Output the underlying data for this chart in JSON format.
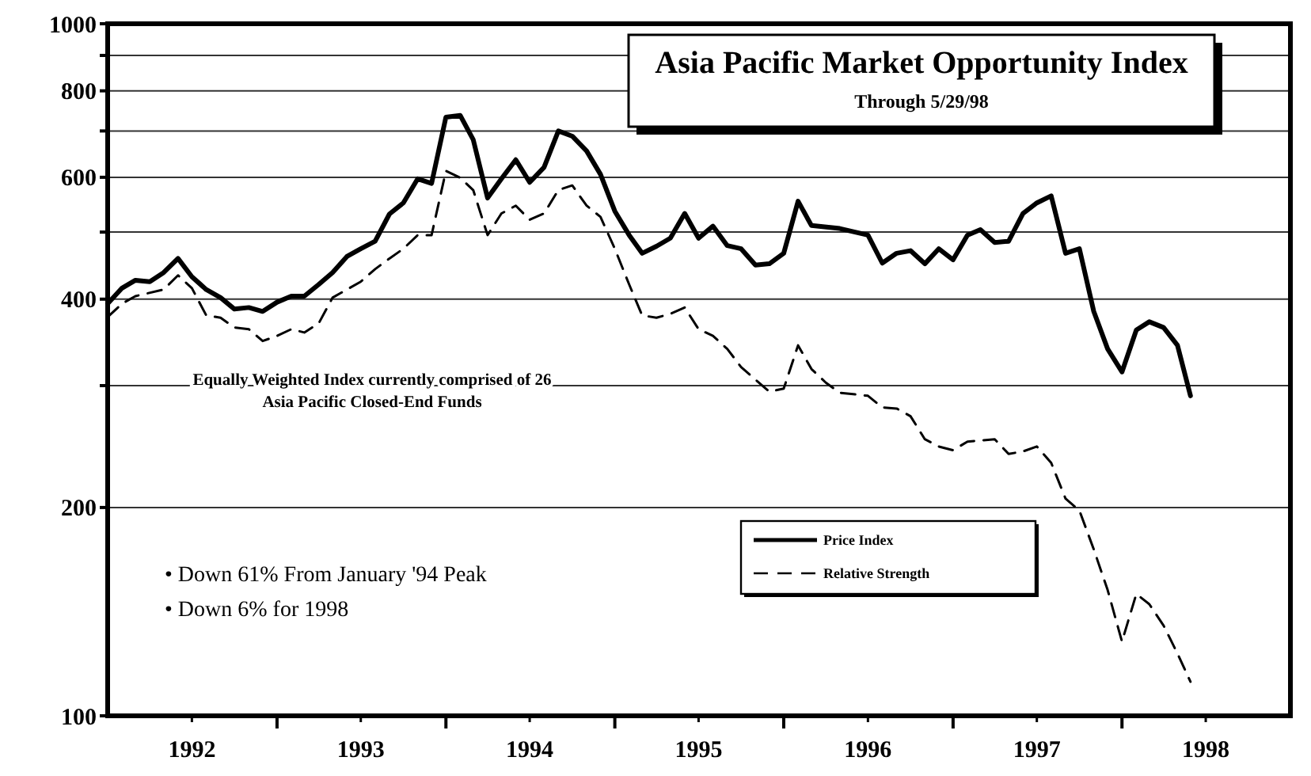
{
  "chart_data": {
    "type": "line",
    "title": "Asia Pacific Market Opportunity Index",
    "subtitle": "Through  5/29/98",
    "log": "y",
    "grid": "y",
    "legend": "bottom",
    "marker": "none",
    "xlim": [
      "1992-01-01",
      "1998-12-31"
    ],
    "xticks": [
      {
        "value": "1992-07-01",
        "label": "1992"
      },
      {
        "value": "1993-01-01",
        "label": null
      },
      {
        "value": "1993-07-01",
        "label": "1993"
      },
      {
        "value": "1994-01-01",
        "label": null
      },
      {
        "value": "1994-07-01",
        "label": "1994"
      },
      {
        "value": "1995-01-01",
        "label": null
      },
      {
        "value": "1995-07-01",
        "label": "1995"
      },
      {
        "value": "1996-01-01",
        "label": null
      },
      {
        "value": "1996-07-01",
        "label": "1996"
      },
      {
        "value": "1997-01-01",
        "label": null
      },
      {
        "value": "1997-07-01",
        "label": "1997"
      },
      {
        "value": "1998-01-01",
        "label": null
      },
      {
        "value": "1998-07-01",
        "label": "1998"
      }
    ],
    "ylim": [
      100,
      1000
    ],
    "yticks": [
      100,
      200,
      {
        "value": 300,
        "label": null
      },
      400,
      {
        "value": 500,
        "label": null
      },
      600,
      {
        "value": 700,
        "label": null
      },
      800,
      {
        "value": 900,
        "label": null
      },
      1000
    ],
    "annotations": [
      "Equally Weighted Index currently comprised of 26",
      "Asia Pacific Closed-End Funds",
      "• Down 61% From January '94 Peak",
      "• Down 6% for 1998"
    ],
    "series": [
      {
        "name": "Price Index",
        "color": "#000000",
        "line_style": "solid",
        "x": [
          "1992-01",
          "1992-02",
          "1992-03",
          "1992-04",
          "1992-05",
          "1992-06",
          "1992-07",
          "1992-08",
          "1992-09",
          "1992-10",
          "1992-11",
          "1992-12",
          "1993-01",
          "1993-02",
          "1993-03",
          "1993-04",
          "1993-05",
          "1993-06",
          "1993-07",
          "1993-08",
          "1993-09",
          "1993-10",
          "1993-11",
          "1993-12",
          "1994-01",
          "1994-02",
          "1994-03",
          "1994-04",
          "1994-05",
          "1994-06",
          "1994-07",
          "1994-08",
          "1994-09",
          "1994-10",
          "1994-11",
          "1994-12",
          "1995-01",
          "1995-02",
          "1995-03",
          "1995-04",
          "1995-05",
          "1995-06",
          "1995-07",
          "1995-08",
          "1995-09",
          "1995-10",
          "1995-11",
          "1995-12",
          "1996-01",
          "1996-02",
          "1996-03",
          "1996-05",
          "1996-07",
          "1996-08",
          "1996-09",
          "1996-10",
          "1996-11",
          "1996-12",
          "1997-01",
          "1997-02",
          "1997-03",
          "1997-04",
          "1997-05",
          "1997-06",
          "1997-07",
          "1997-08",
          "1997-09",
          "1997-10",
          "1997-11",
          "1997-12",
          "1998-01",
          "1998-02",
          "1998-03",
          "1998-04",
          "1998-05-01",
          "1998-05-29"
        ],
        "values": [
          394,
          415,
          426,
          424,
          437,
          458,
          431,
          413,
          402,
          387,
          389,
          384,
          396,
          404,
          404,
          420,
          437,
          461,
          473,
          485,
          531,
          551,
          597,
          588,
          733,
          737,
          680,
          560,
          597,
          636,
          590,
          620,
          700,
          688,
          655,
          606,
          536,
          495,
          466,
          477,
          490,
          532,
          490,
          510,
          478,
          473,
          448,
          450,
          466,
          554,
          511,
          506,
          495,
          451,
          466,
          470,
          450,
          473,
          456,
          495,
          504,
          483,
          485,
          532,
          551,
          564,
          466,
          473,
          384,
          339,
          314,
          361,
          371,
          364,
          343,
          290
        ]
      },
      {
        "name": "Relative Strength",
        "color": "#000000",
        "line_style": "dashed",
        "x": [
          "1992-01",
          "1992-02",
          "1992-03",
          "1992-05",
          "1992-06",
          "1992-07",
          "1992-08",
          "1992-09",
          "1992-10",
          "1992-11",
          "1992-12",
          "1993-01",
          "1993-02",
          "1993-03",
          "1993-04",
          "1993-05",
          "1993-06",
          "1993-07",
          "1993-08",
          "1993-09",
          "1993-10",
          "1993-11",
          "1993-12",
          "1994-01",
          "1994-02",
          "1994-03",
          "1994-04",
          "1994-05",
          "1994-06",
          "1994-07",
          "1994-08",
          "1994-09",
          "1994-10",
          "1994-11",
          "1994-12",
          "1995-01",
          "1995-02",
          "1995-03",
          "1995-04",
          "1995-05",
          "1995-06",
          "1995-07",
          "1995-08",
          "1995-09",
          "1995-10",
          "1995-11",
          "1995-12",
          "1996-01",
          "1996-02",
          "1996-03",
          "1996-04",
          "1996-05",
          "1996-07",
          "1996-08",
          "1996-09",
          "1996-10",
          "1996-11",
          "1996-12",
          "1997-01",
          "1997-02",
          "1997-04",
          "1997-05",
          "1997-06",
          "1997-07",
          "1997-08",
          "1997-09",
          "1997-10",
          "1997-11",
          "1997-12",
          "1998-01",
          "1998-02",
          "1998-03",
          "1998-04",
          "1998-05-01",
          "1998-05-29"
        ],
        "values": [
          377,
          394,
          404,
          413,
          433,
          415,
          379,
          376,
          364,
          362,
          348,
          354,
          362,
          358,
          369,
          402,
          413,
          424,
          442,
          458,
          473,
          495,
          495,
          613,
          599,
          575,
          495,
          532,
          546,
          521,
          532,
          575,
          584,
          546,
          526,
          473,
          420,
          379,
          376,
          381,
          389,
          362,
          354,
          339,
          319,
          306,
          294,
          297,
          343,
          317,
          303,
          293,
          290,
          279,
          278,
          271,
          251,
          245,
          242,
          249,
          251,
          239,
          241,
          245,
          232,
          206,
          198,
          174,
          152,
          128,
          150,
          145,
          135,
          123,
          112
        ]
      }
    ]
  }
}
